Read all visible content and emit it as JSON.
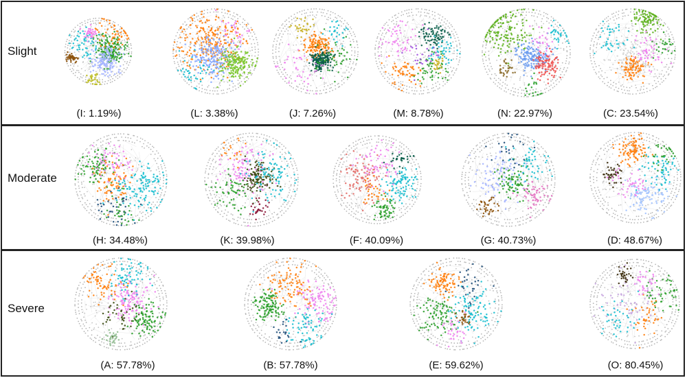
{
  "figure": {
    "rows": [
      {
        "key": "slight",
        "label": "Slight",
        "graphs": [
          {
            "id": "I",
            "caption": "(I: 1.19%)",
            "clusters": [
              {
                "color": "#2ca02c",
                "dx": 0.35,
                "dy": -0.05,
                "spread": 0.22,
                "n": 180
              },
              {
                "color": "#a4b4ff",
                "dx": 0.2,
                "dy": 0.25,
                "spread": 0.24,
                "n": 150
              },
              {
                "color": "#ff7f0e",
                "dx": 0.45,
                "dy": -0.55,
                "spread": 0.25,
                "n": 60
              },
              {
                "color": "#17becf",
                "dx": -0.45,
                "dy": -0.25,
                "spread": 0.2,
                "n": 50
              },
              {
                "color": "#8c510a",
                "dx": -0.78,
                "dy": 0.18,
                "spread": 0.08,
                "n": 40
              },
              {
                "color": "#ee82ee",
                "dx": -0.25,
                "dy": -0.55,
                "spread": 0.1,
                "n": 35
              },
              {
                "color": "#bcbd22",
                "dx": -0.15,
                "dy": 0.8,
                "spread": 0.1,
                "n": 30
              }
            ]
          },
          {
            "id": "L",
            "caption": "(L: 3.38%)",
            "clusters": [
              {
                "color": "#ff7f0e",
                "dx": -0.1,
                "dy": -0.2,
                "spread": 0.35,
                "n": 260
              },
              {
                "color": "#85a8ff",
                "dx": -0.05,
                "dy": 0.15,
                "spread": 0.25,
                "n": 200
              },
              {
                "color": "#7bc62d",
                "dx": 0.45,
                "dy": 0.3,
                "spread": 0.18,
                "n": 180
              },
              {
                "color": "#17becf",
                "dx": -0.5,
                "dy": 0.45,
                "spread": 0.2,
                "n": 40
              },
              {
                "color": "#ee82ee",
                "dx": 0.4,
                "dy": -0.5,
                "spread": 0.2,
                "n": 30
              }
            ]
          },
          {
            "id": "J",
            "caption": "(J: 7.26%)",
            "clusters": [
              {
                "color": "#ff7f0e",
                "dx": 0.05,
                "dy": -0.1,
                "spread": 0.15,
                "n": 150
              },
              {
                "color": "#0b5e4a",
                "dx": 0.15,
                "dy": 0.2,
                "spread": 0.12,
                "n": 170
              },
              {
                "color": "#2ca02c",
                "dx": 0.45,
                "dy": 0.2,
                "spread": 0.25,
                "n": 50
              },
              {
                "color": "#ee82ee",
                "dx": -0.35,
                "dy": 0.35,
                "spread": 0.25,
                "n": 40
              },
              {
                "color": "#c8b020",
                "dx": -0.3,
                "dy": -0.55,
                "spread": 0.12,
                "n": 30
              },
              {
                "color": "#17becf",
                "dx": 0.5,
                "dy": -0.45,
                "spread": 0.15,
                "n": 25
              }
            ]
          },
          {
            "id": "M",
            "caption": "(M: 8.78%)",
            "clusters": [
              {
                "color": "#0b5e4a",
                "dx": 0.35,
                "dy": -0.35,
                "spread": 0.15,
                "n": 80
              },
              {
                "color": "#ff7f0e",
                "dx": -0.3,
                "dy": 0.5,
                "spread": 0.2,
                "n": 60
              },
              {
                "color": "#2ca02c",
                "dx": 0.3,
                "dy": 0.4,
                "spread": 0.2,
                "n": 50
              },
              {
                "color": "#ee82ee",
                "dx": -0.45,
                "dy": -0.3,
                "spread": 0.2,
                "n": 50
              },
              {
                "color": "#17becf",
                "dx": 0.6,
                "dy": 0.05,
                "spread": 0.15,
                "n": 40
              },
              {
                "color": "#c8b020",
                "dx": 0.45,
                "dy": 0.3,
                "spread": 0.08,
                "n": 25
              },
              {
                "color": "#9d4edd",
                "dx": 0.1,
                "dy": 0.1,
                "spread": 0.2,
                "n": 25
              }
            ]
          },
          {
            "id": "N",
            "caption": "(N: 22.97%)",
            "clusters": [
              {
                "color": "#5fb320",
                "dx": -0.45,
                "dy": -0.45,
                "spread": 0.28,
                "n": 150
              },
              {
                "color": "#6a9bf0",
                "dx": 0.15,
                "dy": 0.05,
                "spread": 0.17,
                "n": 160
              },
              {
                "color": "#f0514f",
                "dx": 0.45,
                "dy": 0.25,
                "spread": 0.15,
                "n": 100
              },
              {
                "color": "#17becf",
                "dx": 0.7,
                "dy": -0.4,
                "spread": 0.12,
                "n": 30
              },
              {
                "color": "#8c6d2c",
                "dx": -0.45,
                "dy": 0.35,
                "spread": 0.1,
                "n": 30
              },
              {
                "color": "#ee82ee",
                "dx": 0.35,
                "dy": -0.25,
                "spread": 0.15,
                "n": 25
              },
              {
                "color": "#2ca02c",
                "dx": 0.15,
                "dy": 0.8,
                "spread": 0.15,
                "n": 20
              }
            ]
          },
          {
            "id": "C",
            "caption": "(C: 23.54%)",
            "clusters": [
              {
                "color": "#5fb320",
                "dx": 0.35,
                "dy": -0.75,
                "spread": 0.17,
                "n": 110
              },
              {
                "color": "#ff7f0e",
                "dx": 0.0,
                "dy": 0.35,
                "spread": 0.14,
                "n": 110
              },
              {
                "color": "#d8d8d8",
                "dx": 0.1,
                "dy": 0.15,
                "spread": 0.25,
                "n": 90
              },
              {
                "color": "#ee82ee",
                "dx": 0.3,
                "dy": 0.0,
                "spread": 0.2,
                "n": 50
              },
              {
                "color": "#17becf",
                "dx": -0.5,
                "dy": -0.3,
                "spread": 0.2,
                "n": 40
              },
              {
                "color": "#2ca02c",
                "dx": 0.75,
                "dy": -0.15,
                "spread": 0.12,
                "n": 25
              }
            ]
          }
        ]
      },
      {
        "key": "moderate",
        "label": "Moderate",
        "graphs": [
          {
            "id": "H",
            "caption": "(H: 34.48%)",
            "clusters": [
              {
                "color": "#2ca02c",
                "dx": -0.5,
                "dy": -0.3,
                "spread": 0.2,
                "n": 90
              },
              {
                "color": "#ee82ee",
                "dx": -0.2,
                "dy": -0.35,
                "spread": 0.2,
                "n": 60
              },
              {
                "color": "#ff7f0e",
                "dx": -0.15,
                "dy": 0.05,
                "spread": 0.2,
                "n": 80
              },
              {
                "color": "#17becf",
                "dx": 0.45,
                "dy": 0.15,
                "spread": 0.25,
                "n": 120
              },
              {
                "color": "#1f4e79",
                "dx": -0.1,
                "dy": 0.55,
                "spread": 0.2,
                "n": 40
              },
              {
                "color": "#2ca02c",
                "dx": 0.0,
                "dy": 0.7,
                "spread": 0.15,
                "n": 30
              }
            ]
          },
          {
            "id": "K",
            "caption": "(K: 39.98%)",
            "clusters": [
              {
                "color": "#ee82ee",
                "dx": -0.15,
                "dy": -0.2,
                "spread": 0.25,
                "n": 110
              },
              {
                "color": "#3a4a10",
                "dx": 0.15,
                "dy": -0.05,
                "spread": 0.15,
                "n": 120
              },
              {
                "color": "#17becf",
                "dx": 0.45,
                "dy": -0.15,
                "spread": 0.25,
                "n": 90
              },
              {
                "color": "#2ca02c",
                "dx": -0.45,
                "dy": 0.25,
                "spread": 0.2,
                "n": 60
              },
              {
                "color": "#8b1a3a",
                "dx": 0.15,
                "dy": 0.6,
                "spread": 0.1,
                "n": 30
              },
              {
                "color": "#ff7f0e",
                "dx": -0.45,
                "dy": -0.6,
                "spread": 0.15,
                "n": 20
              }
            ]
          },
          {
            "id": "F",
            "caption": "(F: 40.09%)",
            "clusters": [
              {
                "color": "#e36f6a",
                "dx": -0.4,
                "dy": -0.1,
                "spread": 0.25,
                "n": 100
              },
              {
                "color": "#17becf",
                "dx": 0.5,
                "dy": 0.1,
                "spread": 0.2,
                "n": 90
              },
              {
                "color": "#2ca02c",
                "dx": 0.15,
                "dy": 0.65,
                "spread": 0.13,
                "n": 60
              },
              {
                "color": "#ee82ee",
                "dx": 0.05,
                "dy": -0.4,
                "spread": 0.22,
                "n": 60
              },
              {
                "color": "#0b5e4a",
                "dx": 0.55,
                "dy": -0.45,
                "spread": 0.12,
                "n": 30
              },
              {
                "color": "#ff7f0e",
                "dx": -0.05,
                "dy": 0.25,
                "spread": 0.15,
                "n": 30
              }
            ]
          },
          {
            "id": "G",
            "caption": "(G: 40.73%)",
            "clusters": [
              {
                "color": "#a4b4ff",
                "dx": -0.2,
                "dy": -0.1,
                "spread": 0.25,
                "n": 90
              },
              {
                "color": "#2ca02c",
                "dx": 0.1,
                "dy": 0.05,
                "spread": 0.15,
                "n": 80
              },
              {
                "color": "#e377c2",
                "dx": 0.55,
                "dy": 0.35,
                "spread": 0.15,
                "n": 60
              },
              {
                "color": "#17becf",
                "dx": 0.4,
                "dy": -0.4,
                "spread": 0.2,
                "n": 50
              },
              {
                "color": "#8c510a",
                "dx": -0.45,
                "dy": 0.55,
                "spread": 0.12,
                "n": 35
              },
              {
                "color": "#1f4e79",
                "dx": 0.05,
                "dy": -0.6,
                "spread": 0.2,
                "n": 25
              }
            ]
          },
          {
            "id": "D",
            "caption": "(D: 48.67%)",
            "clusters": [
              {
                "color": "#ff7f0e",
                "dx": -0.05,
                "dy": -0.6,
                "spread": 0.15,
                "n": 100
              },
              {
                "color": "#a4c4ff",
                "dx": 0.25,
                "dy": 0.4,
                "spread": 0.2,
                "n": 100
              },
              {
                "color": "#17becf",
                "dx": 0.5,
                "dy": -0.15,
                "spread": 0.22,
                "n": 60
              },
              {
                "color": "#2ca02c",
                "dx": 0.55,
                "dy": -0.45,
                "spread": 0.15,
                "n": 30
              },
              {
                "color": "#3a2a0a",
                "dx": -0.5,
                "dy": -0.05,
                "spread": 0.1,
                "n": 40
              },
              {
                "color": "#ee82ee",
                "dx": -0.1,
                "dy": 0.1,
                "spread": 0.2,
                "n": 40
              }
            ]
          }
        ]
      },
      {
        "key": "severe",
        "label": "Severe",
        "graphs": [
          {
            "id": "A",
            "caption": "(A: 57.78%)",
            "clusters": [
              {
                "color": "#ee82ee",
                "dx": 0.2,
                "dy": -0.05,
                "spread": 0.22,
                "n": 120
              },
              {
                "color": "#2ca02c",
                "dx": 0.55,
                "dy": 0.35,
                "spread": 0.18,
                "n": 100
              },
              {
                "color": "#17becf",
                "dx": 0.15,
                "dy": -0.6,
                "spread": 0.2,
                "n": 70
              },
              {
                "color": "#ff7f0e",
                "dx": -0.35,
                "dy": -0.45,
                "spread": 0.22,
                "n": 70
              },
              {
                "color": "#3a4a10",
                "dx": -0.05,
                "dy": 0.25,
                "spread": 0.2,
                "n": 40
              },
              {
                "color": "#8fbc8f",
                "dx": -0.2,
                "dy": 0.7,
                "spread": 0.08,
                "n": 30
              }
            ]
          },
          {
            "id": "B",
            "caption": "(B: 57.78%)",
            "clusters": [
              {
                "color": "#2ca02c",
                "dx": -0.45,
                "dy": 0.05,
                "spread": 0.15,
                "n": 120
              },
              {
                "color": "#ee82ee",
                "dx": 0.55,
                "dy": -0.05,
                "spread": 0.2,
                "n": 100
              },
              {
                "color": "#ff7f0e",
                "dx": 0.0,
                "dy": -0.35,
                "spread": 0.25,
                "n": 100
              },
              {
                "color": "#17becf",
                "dx": 0.3,
                "dy": 0.5,
                "spread": 0.22,
                "n": 70
              },
              {
                "color": "#1f4e79",
                "dx": -0.2,
                "dy": 0.6,
                "spread": 0.15,
                "n": 20
              }
            ]
          },
          {
            "id": "E",
            "caption": "(E: 59.62%)",
            "clusters": [
              {
                "color": "#ff7f0e",
                "dx": -0.3,
                "dy": -0.45,
                "spread": 0.15,
                "n": 90
              },
              {
                "color": "#17becf",
                "dx": 0.35,
                "dy": 0.15,
                "spread": 0.22,
                "n": 100
              },
              {
                "color": "#2ca02c",
                "dx": -0.35,
                "dy": 0.2,
                "spread": 0.22,
                "n": 90
              },
              {
                "color": "#8c510a",
                "dx": 0.15,
                "dy": 0.3,
                "spread": 0.08,
                "n": 25
              },
              {
                "color": "#1f4e79",
                "dx": 0.25,
                "dy": -0.4,
                "spread": 0.2,
                "n": 30
              },
              {
                "color": "#ee82ee",
                "dx": -0.05,
                "dy": 0.6,
                "spread": 0.15,
                "n": 30
              }
            ]
          },
          {
            "id": "O",
            "caption": "(O: 80.45%)",
            "clusters": [
              {
                "color": "#c9a9e0",
                "dx": -0.1,
                "dy": -0.05,
                "spread": 0.3,
                "n": 60
              },
              {
                "color": "#2ca02c",
                "dx": 0.55,
                "dy": -0.2,
                "spread": 0.2,
                "n": 50
              },
              {
                "color": "#3a2a0a",
                "dx": -0.25,
                "dy": -0.65,
                "spread": 0.1,
                "n": 30
              },
              {
                "color": "#ff7f0e",
                "dx": 0.25,
                "dy": 0.25,
                "spread": 0.2,
                "n": 40
              },
              {
                "color": "#17becf",
                "dx": -0.35,
                "dy": 0.35,
                "spread": 0.2,
                "n": 40
              },
              {
                "color": "#ee82ee",
                "dx": 0.25,
                "dy": -0.45,
                "spread": 0.15,
                "n": 30
              }
            ]
          }
        ]
      }
    ]
  }
}
